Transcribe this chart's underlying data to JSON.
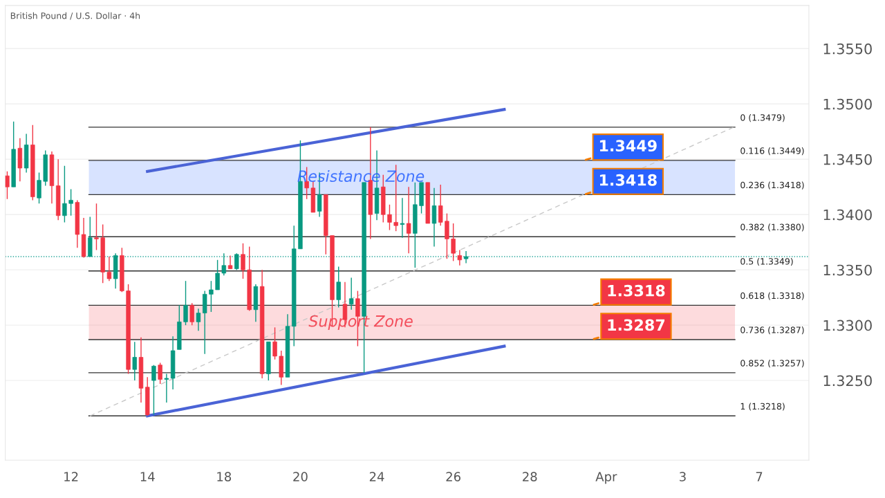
{
  "chart_data": {
    "type": "candlestick",
    "title": "British Pound / U.S. Dollar · 4h",
    "categories": [
      null,
      null,
      null,
      null,
      null,
      null,
      null,
      null,
      null,
      null,
      "12",
      null,
      null,
      null,
      null,
      null,
      null,
      null,
      null,
      null,
      null,
      null,
      "14",
      null,
      null,
      null,
      null,
      null,
      null,
      null,
      null,
      null,
      null,
      null,
      "18",
      null,
      null,
      null,
      null,
      null,
      null,
      null,
      null,
      null,
      null,
      null,
      "20",
      null,
      null,
      null,
      null,
      null,
      null,
      null,
      null,
      null,
      null,
      null,
      "24",
      null,
      null,
      null,
      null,
      null,
      null,
      null,
      null,
      null,
      null,
      null,
      "26",
      null,
      null,
      null,
      null,
      null,
      null,
      null,
      null,
      null,
      null,
      null,
      "28",
      null,
      null,
      null,
      null,
      null,
      null,
      null,
      null,
      null,
      null,
      null,
      "Apr",
      null,
      null,
      null,
      null,
      null,
      null,
      null,
      null,
      null,
      null,
      null,
      "3",
      null,
      null,
      null,
      null,
      null,
      null,
      null,
      null,
      null,
      null,
      null,
      "7",
      null,
      null,
      null,
      null,
      null,
      null,
      null
    ],
    "ohlc": [
      [
        1.3435,
        1.3439,
        1.3414,
        1.3425
      ],
      [
        1.3425,
        1.3484,
        1.3425,
        1.3459
      ],
      [
        1.346,
        1.3469,
        1.343,
        1.3442
      ],
      [
        1.3442,
        1.3473,
        1.3438,
        1.3463
      ],
      [
        1.3463,
        1.3481,
        1.3413,
        1.3416
      ],
      [
        1.3415,
        1.3438,
        1.341,
        1.3431
      ],
      [
        1.343,
        1.3458,
        1.3426,
        1.3454
      ],
      [
        1.3454,
        1.3457,
        1.341,
        1.3426
      ],
      [
        1.3426,
        1.345,
        1.3395,
        1.3399
      ],
      [
        1.3399,
        1.3444,
        1.3393,
        1.341
      ],
      [
        1.341,
        1.3423,
        1.3399,
        1.3413
      ],
      [
        1.3411,
        1.3413,
        1.337,
        1.3382
      ],
      [
        1.3382,
        1.3397,
        1.3361,
        1.3362
      ],
      [
        1.3362,
        1.3398,
        1.3362,
        1.3379
      ],
      [
        1.3379,
        1.341,
        1.3368,
        1.3378
      ],
      [
        1.3379,
        1.3391,
        1.3338,
        1.3348
      ],
      [
        1.3348,
        1.3362,
        1.334,
        1.3342
      ],
      [
        1.3342,
        1.3365,
        1.3333,
        1.3363
      ],
      [
        1.3363,
        1.337,
        1.333,
        1.3331
      ],
      [
        1.3331,
        1.3337,
        1.3256,
        1.326
      ],
      [
        1.326,
        1.3285,
        1.325,
        1.3271
      ],
      [
        1.3271,
        1.3289,
        1.323,
        1.3243
      ],
      [
        1.3244,
        1.3253,
        1.3218,
        1.3219
      ],
      [
        1.325,
        1.3264,
        1.3219,
        1.3263
      ],
      [
        1.3264,
        1.3266,
        1.3247,
        1.3251
      ],
      [
        1.3251,
        1.3256,
        1.323,
        1.3252
      ],
      [
        1.3252,
        1.329,
        1.3242,
        1.3277
      ],
      [
        1.3278,
        1.3318,
        1.3278,
        1.3303
      ],
      [
        1.3303,
        1.334,
        1.33,
        1.3318
      ],
      [
        1.3318,
        1.332,
        1.33,
        1.3303
      ],
      [
        1.3303,
        1.3315,
        1.3295,
        1.3311
      ],
      [
        1.3311,
        1.3331,
        1.3274,
        1.3328
      ],
      [
        1.3328,
        1.334,
        1.3312,
        1.3332
      ],
      [
        1.3332,
        1.3359,
        1.3332,
        1.3347
      ],
      [
        1.3347,
        1.3365,
        1.3345,
        1.3354
      ],
      [
        1.3354,
        1.3363,
        1.3351,
        1.3351
      ],
      [
        1.3351,
        1.3365,
        1.335,
        1.3364
      ],
      [
        1.3364,
        1.3374,
        1.3342,
        1.335
      ],
      [
        1.335,
        1.3371,
        1.3313,
        1.3314
      ],
      [
        1.3314,
        1.3337,
        1.3303,
        1.3335
      ],
      [
        1.3335,
        1.335,
        1.3252,
        1.3256
      ],
      [
        1.3256,
        1.3285,
        1.325,
        1.3285
      ],
      [
        1.3285,
        1.3298,
        1.3269,
        1.3272
      ],
      [
        1.3272,
        1.3277,
        1.3246,
        1.3253
      ],
      [
        1.3253,
        1.331,
        1.3253,
        1.3299
      ],
      [
        1.3299,
        1.339,
        1.3281,
        1.3369
      ],
      [
        1.3369,
        1.3467,
        1.3369,
        1.343
      ],
      [
        1.343,
        1.3443,
        1.3414,
        1.3424
      ],
      [
        1.3424,
        1.343,
        1.3402,
        1.3402
      ],
      [
        1.3403,
        1.3438,
        1.3398,
        1.3418
      ],
      [
        1.3418,
        1.3418,
        1.3364,
        1.3381
      ],
      [
        1.3381,
        1.3381,
        1.3299,
        1.3323
      ],
      [
        1.3323,
        1.3353,
        1.3316,
        1.3339
      ],
      [
        1.3319,
        1.3339,
        1.3298,
        1.3305
      ],
      [
        1.3319,
        1.3343,
        1.3314,
        1.3324
      ],
      [
        1.3324,
        1.3331,
        1.3281,
        1.3308
      ],
      [
        1.3308,
        1.3429,
        1.3257,
        1.3429
      ],
      [
        1.3431,
        1.3479,
        1.3378,
        1.34
      ],
      [
        1.3401,
        1.3458,
        1.3395,
        1.3424
      ],
      [
        1.3425,
        1.3436,
        1.3393,
        1.34
      ],
      [
        1.34,
        1.3409,
        1.3386,
        1.3393
      ],
      [
        1.3393,
        1.3445,
        1.3385,
        1.339
      ],
      [
        1.3391,
        1.3415,
        1.3379,
        1.3392
      ],
      [
        1.3392,
        1.3425,
        1.3365,
        1.3383
      ],
      [
        1.3383,
        1.3429,
        1.3352,
        1.3409
      ],
      [
        1.3408,
        1.3429,
        1.3401,
        1.3429
      ],
      [
        1.3429,
        1.3429,
        1.3392,
        1.3392
      ],
      [
        1.3392,
        1.3424,
        1.3371,
        1.3408
      ],
      [
        1.3408,
        1.3427,
        1.339,
        1.3393
      ],
      [
        1.3394,
        1.3401,
        1.336,
        1.3378
      ],
      [
        1.3378,
        1.3392,
        1.3358,
        1.3365
      ],
      [
        1.3363,
        1.3368,
        1.3354,
        1.3359
      ],
      [
        1.336,
        1.3367,
        1.3356,
        1.3362
      ],
      null,
      null,
      null,
      null,
      null,
      null,
      null,
      null,
      null,
      null,
      null,
      null,
      null,
      null,
      null,
      null,
      null,
      null,
      null,
      null,
      null,
      null,
      null,
      null,
      null,
      null,
      null,
      null,
      null,
      null,
      null,
      null,
      null,
      null,
      null,
      null,
      null,
      null,
      null,
      null,
      null,
      null,
      null,
      null,
      null,
      null,
      null,
      null,
      null,
      null,
      null,
      null,
      null
    ],
    "colors": [
      "#f23645",
      "#089981",
      "#f23645",
      "#089981",
      "#f23645",
      "#089981",
      "#089981",
      "#f23645",
      "#f23645",
      "#089981",
      "#089981",
      "#f23645",
      "#f23645",
      "#089981",
      "#f23645",
      "#f23645",
      "#f23645",
      "#089981",
      "#f23645",
      "#f23645",
      "#089981",
      "#f23645",
      "#f23645",
      "#089981",
      "#f23645",
      "#089981",
      "#089981",
      "#089981",
      "#089981",
      "#f23645",
      "#089981",
      "#089981",
      "#089981",
      "#089981",
      "#089981",
      "#f23645",
      "#089981",
      "#f23645",
      "#f23645",
      "#089981",
      "#f23645",
      "#089981",
      "#f23645",
      "#f23645",
      "#089981",
      "#089981",
      "#089981",
      "#f23645",
      "#f23645",
      "#089981",
      "#f23645",
      "#f23645",
      "#089981",
      "#f23645",
      "#089981",
      "#f23645",
      "#089981",
      "#f23645",
      "#089981",
      "#f23645",
      "#f23645",
      "#f23645",
      "#089981",
      "#f23645",
      "#089981",
      "#089981",
      "#f23645",
      "#089981",
      "#f23645",
      "#f23645",
      "#f23645",
      "#f23645",
      "#089981",
      null,
      null,
      null,
      null,
      null,
      null,
      null,
      null,
      null,
      null,
      null,
      null,
      null,
      null,
      null,
      null,
      null,
      null,
      null,
      null,
      null,
      null,
      null,
      null,
      null,
      null,
      null,
      null,
      null,
      null,
      null,
      null,
      null,
      null,
      null,
      null,
      null,
      null,
      null,
      null,
      null,
      null,
      null,
      null,
      null,
      null,
      null,
      null,
      null,
      null,
      null,
      null,
      null
    ],
    "series": [
      {
        "type": "line",
        "color": "#4a63d6",
        "line_style": "solid",
        "values": [
          null,
          null,
          null,
          null,
          null,
          null,
          null,
          null,
          null,
          null,
          null,
          null,
          null,
          null,
          null,
          null,
          null,
          null,
          null,
          null,
          null,
          null,
          1.3439,
          null,
          null,
          null,
          null,
          null,
          null,
          null,
          null,
          null,
          null,
          null,
          null,
          null,
          null,
          null,
          null,
          null,
          null,
          null,
          null,
          null,
          null,
          null,
          null,
          null,
          null,
          null,
          null,
          null,
          null,
          null,
          null,
          null,
          null,
          null,
          null,
          null,
          null,
          null,
          null,
          null,
          null,
          null,
          null,
          null,
          null,
          null,
          null,
          null,
          null,
          null,
          null,
          null,
          null,
          null,
          1.3495,
          null,
          null,
          null,
          null,
          null,
          null,
          null,
          null,
          null,
          null,
          null,
          null,
          null,
          null,
          null,
          null,
          null,
          null,
          null,
          null,
          null,
          null,
          null,
          null,
          null,
          null,
          null,
          null,
          null,
          null,
          null,
          null,
          null,
          null,
          null,
          null,
          null,
          null,
          null,
          null,
          null,
          null,
          null,
          null,
          null,
          null,
          null
        ]
      },
      {
        "type": "line",
        "color": "#4a63d6",
        "line_style": "solid",
        "values": [
          null,
          null,
          null,
          null,
          null,
          null,
          null,
          null,
          null,
          null,
          null,
          null,
          null,
          null,
          null,
          null,
          null,
          null,
          null,
          null,
          null,
          null,
          1.3218,
          null,
          null,
          null,
          null,
          null,
          null,
          null,
          null,
          null,
          null,
          null,
          null,
          null,
          null,
          null,
          null,
          null,
          null,
          null,
          null,
          null,
          null,
          null,
          null,
          null,
          null,
          null,
          null,
          null,
          null,
          null,
          null,
          null,
          null,
          null,
          null,
          null,
          null,
          null,
          null,
          null,
          null,
          null,
          null,
          null,
          null,
          null,
          null,
          null,
          null,
          null,
          null,
          null,
          null,
          null,
          1.3281,
          null,
          null,
          null,
          null,
          null,
          null,
          null,
          null,
          null,
          null,
          null,
          null,
          null,
          null,
          null,
          null,
          null,
          null,
          null,
          null,
          null,
          null,
          null,
          null,
          null,
          null,
          null,
          null,
          null,
          null,
          null,
          null,
          null,
          null,
          null,
          null,
          null,
          null,
          null,
          null,
          null,
          null,
          null,
          null,
          null,
          null,
          null
        ]
      },
      {
        "type": "line",
        "color": "#c8c8c8",
        "line_style": "dashed",
        "values": [
          null,
          null,
          null,
          null,
          null,
          null,
          null,
          null,
          null,
          null,
          null,
          null,
          null,
          1.3218,
          null,
          null,
          null,
          null,
          null,
          null,
          null,
          null,
          null,
          null,
          null,
          null,
          null,
          null,
          null,
          null,
          null,
          null,
          null,
          null,
          null,
          null,
          null,
          null,
          null,
          null,
          null,
          null,
          null,
          null,
          null,
          null,
          null,
          null,
          null,
          null,
          null,
          null,
          null,
          null,
          null,
          null,
          null,
          null,
          null,
          null,
          null,
          null,
          null,
          null,
          null,
          null,
          null,
          null,
          null,
          null,
          null,
          null,
          null,
          null,
          null,
          null,
          null,
          null,
          null,
          null,
          null,
          null,
          null,
          null,
          null,
          null,
          null,
          null,
          null,
          null,
          null,
          null,
          null,
          null,
          null,
          null,
          null,
          null,
          null,
          null,
          null,
          null,
          null,
          null,
          null,
          null,
          null,
          null,
          null,
          null,
          null,
          null,
          null,
          null,
          1.3479,
          null,
          null,
          null,
          null,
          null,
          null,
          null,
          null,
          null,
          null,
          null
        ]
      }
    ],
    "ylim": [
      1.3178,
      1.3589
    ],
    "yticks": [
      {
        "value": 1.325,
        "label": "1.3250"
      },
      {
        "value": 1.33,
        "label": "1.3300"
      },
      {
        "value": 1.335,
        "label": "1.3350"
      },
      {
        "value": 1.34,
        "label": "1.3400"
      },
      {
        "value": 1.345,
        "label": "1.3450"
      },
      {
        "value": 1.355,
        "label": "1.3550"
      },
      {
        "value": 1.35,
        "label": "1.3500"
      }
    ],
    "grid": "y",
    "ref_lines": [
      {
        "axis": "y",
        "value": 1.3479,
        "label": "0 (1.3479)",
        "color": "#333333",
        "line_style": "solid"
      },
      {
        "axis": "y",
        "value": 1.3449,
        "label": "0.116 (1.3449)",
        "color": "#333333",
        "line_style": "solid"
      },
      {
        "axis": "y",
        "value": 1.3418,
        "label": "0.236 (1.3418)",
        "color": "#333333",
        "line_style": "solid"
      },
      {
        "axis": "y",
        "value": 1.338,
        "label": "0.382 (1.3380)",
        "color": "#333333",
        "line_style": "solid"
      },
      {
        "axis": "y",
        "value": 1.3349,
        "label": "0.5 (1.3349)",
        "color": "#333333",
        "line_style": "solid"
      },
      {
        "axis": "y",
        "value": 1.3318,
        "label": "0.618 (1.3318)",
        "color": "#333333",
        "line_style": "solid"
      },
      {
        "axis": "y",
        "value": 1.3287,
        "label": "0.736 (1.3287)",
        "color": "#333333",
        "line_style": "solid"
      },
      {
        "axis": "y",
        "value": 1.3257,
        "label": "0.852 (1.3257)",
        "color": "#333333",
        "line_style": "solid"
      },
      {
        "axis": "y",
        "value": 1.3218,
        "label": "1 (1.3218)",
        "color": "#333333",
        "line_style": "solid"
      },
      {
        "axis": "y",
        "value": 1.3362,
        "label": null,
        "color": "#26a69a",
        "line_style": "dotted"
      }
    ],
    "bands": [
      {
        "axis": "y",
        "from": 1.3418,
        "to": 1.3449,
        "label": "Resistance Zone",
        "color": "#2962ff"
      },
      {
        "axis": "y",
        "from": 1.3287,
        "to": 1.3318,
        "label": "Support Zone",
        "color": "#f23645"
      }
    ],
    "annotations": [
      {
        "text": "1.3449",
        "y": 1.3449
      },
      {
        "text": "1.3418",
        "y": 1.3418
      },
      {
        "text": "1.3318",
        "y": 1.3318
      },
      {
        "text": "1.3287",
        "y": 1.3287
      }
    ]
  }
}
